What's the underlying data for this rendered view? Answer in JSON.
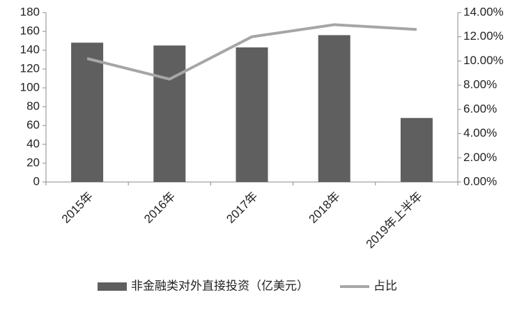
{
  "chart_data": {
    "type": "bar",
    "categories": [
      "2015年",
      "2016年",
      "2017年",
      "2018年",
      "2019年上半年"
    ],
    "series": [
      {
        "name": "非金融类对外直接投资（亿美元）",
        "type": "bar",
        "color": "#5f5f5f",
        "values": [
          148,
          145,
          143,
          156,
          68
        ]
      },
      {
        "name": "占比",
        "type": "line",
        "axis": "y2",
        "color": "#a6a6a6",
        "values": [
          10.2,
          8.5,
          12.0,
          13.0,
          12.6
        ]
      }
    ],
    "ylim": [
      0,
      180
    ],
    "yticks": [
      0,
      20,
      40,
      60,
      80,
      100,
      120,
      140,
      160,
      180
    ],
    "y2lim": [
      0,
      14
    ],
    "y2ticks": [
      {
        "value": 0,
        "label": "0.00%"
      },
      {
        "value": 2,
        "label": "2.00%"
      },
      {
        "value": 4,
        "label": "4.00%"
      },
      {
        "value": 6,
        "label": "6.00%"
      },
      {
        "value": 8,
        "label": "8.00%"
      },
      {
        "value": 10,
        "label": "10.00%"
      },
      {
        "value": 12,
        "label": "12.00%"
      },
      {
        "value": 14,
        "label": "14.00%"
      }
    ],
    "grid": false,
    "legend": "bottom"
  }
}
